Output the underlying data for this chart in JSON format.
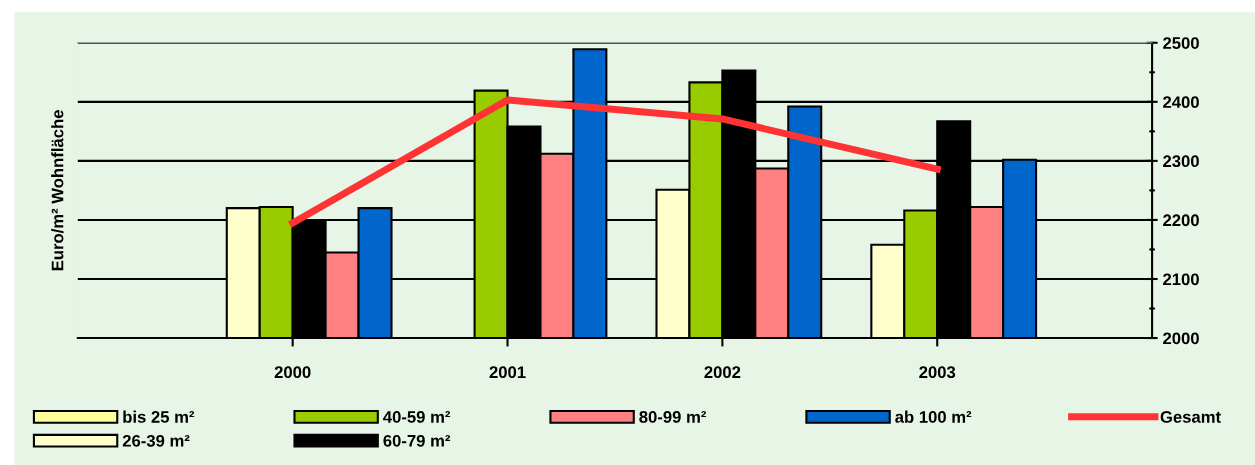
{
  "chart_data": {
    "type": "bar",
    "ylabel": "Euro/m² Wohnfläche",
    "categories": [
      "2000",
      "2001",
      "2002",
      "2003"
    ],
    "series": [
      {
        "name": "bis 25 m²",
        "color": "#ffff99",
        "values": [
          null,
          null,
          null,
          null
        ]
      },
      {
        "name": "26-39 m²",
        "color": "#ffffcc",
        "values": [
          2220,
          null,
          2251,
          2158
        ]
      },
      {
        "name": "40-59 m²",
        "color": "#99cc00",
        "values": [
          2222,
          2419,
          2433,
          2216
        ]
      },
      {
        "name": "60-79 m²",
        "color": "#000000",
        "values": [
          2198,
          2358,
          2453,
          2367
        ]
      },
      {
        "name": "80-99 m²",
        "color": "#ff8080",
        "values": [
          2145,
          2312,
          2287,
          2222
        ]
      },
      {
        "name": "ab 100 m²",
        "color": "#0066cc",
        "values": [
          2220,
          2489,
          2392,
          2302
        ]
      },
      {
        "name": "Gesamt",
        "type": "line",
        "color": "#ff3333",
        "values": [
          2195,
          2403,
          2371,
          2286
        ]
      }
    ],
    "ylim": [
      2000,
      2500
    ],
    "yticks": [
      2000,
      {
        "value": 2050,
        "label": null
      },
      2100,
      {
        "value": 2150,
        "label": null
      },
      2200,
      {
        "value": 2250,
        "label": null
      },
      2300,
      {
        "value": 2350,
        "label": null
      },
      2400,
      {
        "value": 2450,
        "label": null
      },
      2500
    ],
    "grid": "y",
    "legend": "bottom",
    "marker": "none",
    "line_style": "solid"
  }
}
